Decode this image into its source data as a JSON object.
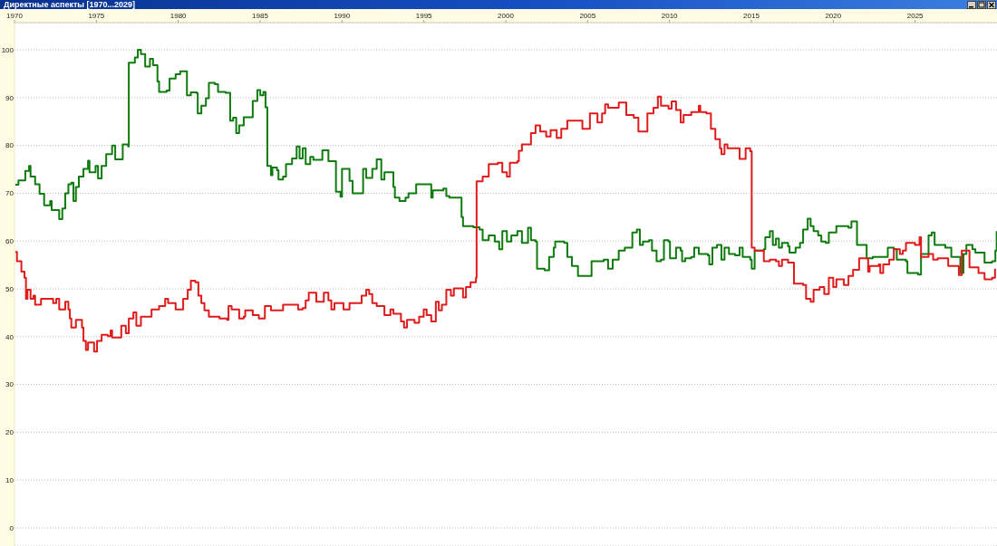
{
  "chart_data": {
    "type": "step",
    "title": "Директные аспекты [1970...2029]",
    "xlim": [
      1970,
      2030
    ],
    "xticks": [
      1970,
      1975,
      1980,
      1985,
      1990,
      1995,
      2000,
      2005,
      2010,
      2015,
      2020,
      2025
    ],
    "ylim": [
      -3.8,
      105.7
    ],
    "yticks": [
      0,
      10,
      20,
      30,
      40,
      50,
      60,
      70,
      80,
      90,
      100
    ],
    "grid": "y",
    "series": [
      {
        "color": "#0f7b0f",
        "x": [
          1970.05,
          1970.24,
          1970.66,
          1970.89,
          1970.98,
          1971.26,
          1971.53,
          1971.81,
          1972.18,
          1972.27,
          1972.73,
          1972.92,
          1973.1,
          1973.29,
          1973.47,
          1973.6,
          1973.75,
          1973.93,
          1974.21,
          1974.49,
          1974.58,
          1974.95,
          1975.1,
          1975.32,
          1975.6,
          1975.96,
          1976.15,
          1976.61,
          1976.94,
          1976.98,
          1977.35,
          1977.53,
          1977.72,
          1977.98,
          1978.27,
          1978.46,
          1978.73,
          1978.83,
          1979.29,
          1979.47,
          1979.84,
          1980.12,
          1980.53,
          1980.77,
          1981.14,
          1981.19,
          1981.41,
          1981.69,
          1981.87,
          1982.24,
          1982.43,
          1982.89,
          1983.17,
          1983.35,
          1983.54,
          1983.72,
          1984.0,
          1984.55,
          1984.83,
          1985.01,
          1985.2,
          1985.33,
          1985.44,
          1985.66,
          1985.75,
          1986.03,
          1986.12,
          1986.4,
          1986.58,
          1986.95,
          1987.23,
          1987.41,
          1987.6,
          1987.78,
          1988.06,
          1988.25,
          1988.8,
          1989.17,
          1989.63,
          1989.91,
          1990.0,
          1990.46,
          1990.65,
          1991.29,
          1991.48,
          1991.85,
          1992.12,
          1992.4,
          1992.59,
          1993.14,
          1993.23,
          1993.51,
          1993.88,
          1994.06,
          1994.53,
          1995.45,
          1995.54,
          1996.19,
          1996.37,
          1996.56,
          1997.3,
          1997.39,
          1998.03,
          1998.4,
          1998.59,
          1998.96,
          1999.33,
          1999.6,
          1999.79,
          2000.07,
          2000.34,
          2000.71,
          2000.99,
          2001.36,
          2001.54,
          2001.82,
          2001.91,
          2002.37,
          2002.65,
          2002.93,
          2003.02,
          2003.57,
          2003.76,
          2004.04,
          2004.41,
          2005.24,
          2005.98,
          2006.25,
          2006.53,
          2006.9,
          2007.27,
          2007.73,
          2008.01,
          2008.19,
          2008.38,
          2008.75,
          2008.93,
          2009.21,
          2009.48,
          2009.66,
          2009.94,
          2010.03,
          2010.4,
          2010.68,
          2010.77,
          2010.96,
          2011.33,
          2011.51,
          2011.79,
          2012.34,
          2012.43,
          2012.62,
          2012.9,
          2013.17,
          2013.36,
          2013.63,
          2014.0,
          2014.28,
          2014.47,
          2014.93,
          2015.02,
          2015.2,
          2015.76,
          2015.85,
          2016.13,
          2016.31,
          2016.5,
          2016.68,
          2016.87,
          2017.24,
          2017.33,
          2017.7,
          2017.97,
          2018.16,
          2018.44,
          2018.62,
          2018.8,
          2019.08,
          2019.27,
          2019.54,
          2019.73,
          2020.19,
          2020.93,
          2021.11,
          2021.45,
          2022.04,
          2022.41,
          2023.33,
          2023.7,
          2023.88,
          2024.44,
          2024.53,
          2025.18,
          2025.36,
          2025.82,
          2026.01,
          2026.19,
          2026.84,
          2027.21,
          2027.76,
          2027.95,
          2028.13,
          2028.5,
          2028.68,
          2029.24,
          2029.7,
          2029.9,
          2029.98
        ],
        "values": [
          71.8,
          72.7,
          74.7,
          75.7,
          73.5,
          71.9,
          69.9,
          67.5,
          68.4,
          66.5,
          64.6,
          66.8,
          70,
          71.9,
          72.2,
          68.4,
          71.3,
          73.5,
          75.1,
          76.8,
          74.4,
          75.7,
          73.1,
          75.7,
          78.2,
          80,
          77.1,
          80.2,
          79.8,
          97.3,
          98.4,
          100,
          99.1,
          96.5,
          98.1,
          96.8,
          93.4,
          91.2,
          91.5,
          94,
          94.9,
          95.5,
          90.5,
          91.1,
          90.9,
          86.7,
          88.3,
          89.9,
          93.1,
          92.8,
          91.2,
          91,
          85.2,
          85.8,
          82.6,
          84.2,
          85.9,
          89.3,
          91.6,
          90.5,
          91.2,
          88,
          75.7,
          73.8,
          75.4,
          74.8,
          72.9,
          73.5,
          76.1,
          77.3,
          79.8,
          77.3,
          79.4,
          76.1,
          77.6,
          77,
          79,
          76.7,
          70.3,
          69.3,
          75.1,
          72.6,
          70,
          75.1,
          73.2,
          75.1,
          77.1,
          72.9,
          74.4,
          71.3,
          69.1,
          68.4,
          69.1,
          70,
          71.9,
          69.1,
          70.6,
          71,
          69.4,
          69.1,
          65,
          63.1,
          62.9,
          62.4,
          60.2,
          61.2,
          59.9,
          58.3,
          62.1,
          59.9,
          61.2,
          62.1,
          59.6,
          62.8,
          60.2,
          59.9,
          54.2,
          53.9,
          56.7,
          58.6,
          59.9,
          59.6,
          56.7,
          54.8,
          52.7,
          55.8,
          56.1,
          54.2,
          56.1,
          58,
          58.6,
          61.8,
          62.4,
          59.2,
          59.9,
          60.2,
          58,
          55.8,
          56.1,
          60.2,
          59.9,
          56.4,
          58.6,
          58,
          55.8,
          56.4,
          56.7,
          58.6,
          57.3,
          57,
          55.1,
          58.6,
          59.2,
          56.1,
          58.6,
          57.3,
          57,
          58.6,
          56.7,
          56.1,
          54.2,
          58,
          58.3,
          60.8,
          62.1,
          59.2,
          60.5,
          58.6,
          59.6,
          58.9,
          57.6,
          58.6,
          59.6,
          62.4,
          64.7,
          63.1,
          62.1,
          61.2,
          59.9,
          59.6,
          61.8,
          63.1,
          62.8,
          64.1,
          59.2,
          56.4,
          56.7,
          58.6,
          58.3,
          56.1,
          55.8,
          53.3,
          53,
          57.3,
          61.2,
          61.8,
          59.2,
          58.6,
          56.7,
          53.3,
          57.3,
          59.2,
          58.3,
          57.6,
          55.5,
          55.8,
          58,
          62.1
        ]
      },
      {
        "color": "#e01b1b",
        "x": [
          1970.05,
          1970.15,
          1970.42,
          1970.61,
          1970.7,
          1970.79,
          1970.98,
          1971.16,
          1971.26,
          1971.62,
          1972.36,
          1972.55,
          1972.73,
          1973.1,
          1973.29,
          1973.38,
          1973.47,
          1973.75,
          1974.12,
          1974.21,
          1974.36,
          1974.49,
          1974.86,
          1975.04,
          1975.32,
          1975.69,
          1975.87,
          1975.96,
          1976.52,
          1976.8,
          1976.98,
          1977.26,
          1977.44,
          1977.72,
          1978.37,
          1978.83,
          1979.2,
          1979.38,
          1979.84,
          1980.3,
          1980.58,
          1980.77,
          1981.04,
          1981.23,
          1981.41,
          1981.6,
          1981.87,
          1982.52,
          1982.98,
          1983.07,
          1983.26,
          1983.72,
          1984.0,
          1984.09,
          1984.55,
          1984.92,
          1985.29,
          1985.66,
          1986.4,
          1987.32,
          1987.6,
          1987.78,
          1987.97,
          1988.43,
          1988.89,
          1989.17,
          1989.35,
          1989.54,
          1990.09,
          1990.46,
          1991.2,
          1991.48,
          1991.66,
          1991.85,
          1992.12,
          1992.59,
          1992.96,
          1993.14,
          1993.6,
          1993.79,
          1993.97,
          1994.43,
          1994.71,
          1994.99,
          1995.17,
          1995.45,
          1995.73,
          1995.91,
          1996.1,
          1996.37,
          1996.65,
          1996.83,
          1997.39,
          1997.57,
          1997.85,
          1998.18,
          1998.22,
          1998.59,
          1998.96,
          1999.51,
          1999.79,
          2000.07,
          2000.25,
          2000.71,
          2000.8,
          2000.99,
          2001.54,
          2001.82,
          2002.1,
          2002.47,
          2002.74,
          2003.11,
          2003.39,
          2003.76,
          2004.68,
          2005.14,
          2005.6,
          2005.88,
          2006.07,
          2006.25,
          2006.9,
          2007.36,
          2007.82,
          2008.1,
          2008.65,
          2009.02,
          2009.29,
          2009.48,
          2009.94,
          2010.13,
          2010.4,
          2010.68,
          2010.86,
          2011.33,
          2011.79,
          2011.88,
          2012.25,
          2012.53,
          2012.8,
          2013.08,
          2013.17,
          2013.36,
          2013.54,
          2014.28,
          2014.65,
          2014.93,
          2015.02,
          2015.2,
          2015.76,
          2016.13,
          2016.5,
          2016.68,
          2016.87,
          2017.24,
          2017.6,
          2018.16,
          2018.34,
          2018.62,
          2018.8,
          2019.17,
          2019.45,
          2019.73,
          2020.0,
          2020.19,
          2020.65,
          2020.93,
          2021.21,
          2021.58,
          2022.13,
          2022.22,
          2022.78,
          2022.87,
          2023.05,
          2023.42,
          2023.7,
          2024.07,
          2024.25,
          2024.44,
          2024.99,
          2025.27,
          2025.36,
          2025.82,
          2026.1,
          2026.38,
          2027.02,
          2027.67,
          2027.85,
          2028.32,
          2028.87,
          2029.24,
          2029.7,
          2029.88
        ],
        "values": [
          57.7,
          55.8,
          53.6,
          52.3,
          47.9,
          49.8,
          47.9,
          48.6,
          46.7,
          47.9,
          47,
          47.9,
          45.7,
          47.3,
          45.7,
          43.8,
          41.9,
          43.5,
          41.9,
          39.1,
          37.2,
          38.8,
          36.9,
          39.1,
          40.4,
          40.1,
          41.3,
          39.8,
          42.3,
          40.7,
          43.8,
          45.1,
          42.3,
          44.2,
          45.7,
          46.4,
          47.9,
          47,
          45.7,
          47.9,
          49.8,
          51.7,
          51.4,
          48.6,
          47,
          45.5,
          44.2,
          43.8,
          43.5,
          46.4,
          45.7,
          43.8,
          44.2,
          45.5,
          44.5,
          43.8,
          46.4,
          45.5,
          46.7,
          45.7,
          46,
          47.6,
          49.2,
          47.3,
          49.2,
          47.6,
          45.7,
          47,
          45.7,
          47,
          48.6,
          49.8,
          48.9,
          47,
          46.4,
          44.5,
          45.7,
          44.8,
          43.2,
          41.9,
          43.5,
          42.9,
          44.2,
          45.7,
          44.5,
          43.2,
          47.3,
          45.5,
          46.7,
          49.8,
          48.6,
          50.1,
          48.2,
          50.4,
          51.4,
          52.3,
          72.5,
          73.5,
          76.1,
          76.4,
          74.4,
          73.5,
          76.4,
          76.7,
          78.9,
          80.2,
          82.6,
          84.2,
          82.9,
          81.9,
          83.2,
          81.6,
          83.5,
          85.2,
          83.5,
          86.7,
          84.8,
          86.7,
          88.6,
          87.9,
          89,
          86.4,
          85.8,
          82.9,
          86.7,
          87.9,
          90.2,
          88.3,
          87.7,
          89.2,
          87.4,
          84.8,
          86.4,
          87,
          88.3,
          87,
          86.7,
          83.5,
          81.3,
          79.4,
          78.2,
          80.2,
          79.4,
          77.2,
          79.4,
          78.8,
          58.6,
          58,
          55.8,
          56.1,
          55.8,
          54.8,
          56.1,
          55.5,
          51.1,
          50.8,
          47.9,
          47.3,
          49.8,
          50.4,
          48.9,
          52.3,
          50.4,
          52,
          50.8,
          52.7,
          54,
          56.4,
          53.6,
          54.8,
          55.1,
          53.3,
          55.1,
          56.1,
          58.3,
          57.3,
          58,
          59.6,
          59.2,
          60.8,
          56.7,
          57.3,
          56.1,
          56.4,
          54.8,
          52.9,
          58,
          54.5,
          53.3,
          52,
          52.3,
          54.2
        ]
      }
    ]
  }
}
